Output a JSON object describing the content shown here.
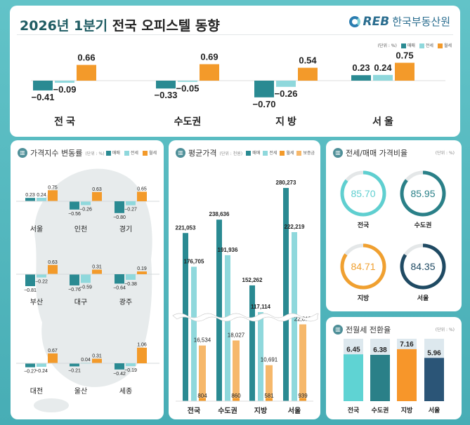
{
  "header": {
    "title_year": "2026년 1분기",
    "title_rest": "전국 오피스텔 동향",
    "logo_mark": "REB",
    "logo_name": "한국부동산원"
  },
  "colors": {
    "sale": "#2a8a92",
    "jeonse": "#8fd8dc",
    "monthly": "#f39a2a",
    "deposit": "#f6b86b",
    "track": "#e4e7e8"
  },
  "legend": {
    "unit": "(단위 : %)",
    "sale": "매매",
    "jeonse": "전세",
    "monthly": "월세",
    "deposit": "보증금"
  },
  "chart_data": [
    {
      "type": "bar",
      "id": "summary",
      "unit": "(단위 : %)",
      "categories": [
        "전 국",
        "수도권",
        "지 방",
        "서 울"
      ],
      "series": [
        {
          "name": "매매",
          "values": [
            -0.41,
            -0.33,
            -0.7,
            0.23
          ]
        },
        {
          "name": "전세",
          "values": [
            -0.09,
            -0.05,
            -0.26,
            0.24
          ]
        },
        {
          "name": "월세",
          "values": [
            0.66,
            0.69,
            0.54,
            0.75
          ]
        }
      ]
    },
    {
      "type": "bar",
      "id": "index",
      "title": "가격지수 변동률",
      "unit": "(단위 : %)",
      "categories": [
        "서울",
        "인천",
        "경기",
        "부산",
        "대구",
        "광주",
        "대전",
        "울산",
        "세종"
      ],
      "series": [
        {
          "name": "매매",
          "values": [
            0.23,
            -0.56,
            -0.8,
            -0.81,
            -0.76,
            -0.64,
            -0.27,
            -0.21,
            -0.42
          ]
        },
        {
          "name": "전세",
          "values": [
            0.24,
            -0.26,
            -0.27,
            -0.22,
            -0.59,
            -0.38,
            -0.24,
            0.04,
            -0.19
          ]
        },
        {
          "name": "월세",
          "values": [
            0.75,
            0.63,
            0.65,
            0.63,
            0.31,
            0.19,
            0.67,
            0.31,
            1.06
          ]
        }
      ]
    },
    {
      "type": "bar",
      "id": "price",
      "title": "평균가격",
      "unit": "(단위 : 천원)",
      "categories": [
        "전국",
        "수도권",
        "지방",
        "서울"
      ],
      "axis_break": true,
      "series": [
        {
          "name": "매매",
          "values": [
            221053,
            238636,
            152262,
            280273
          ]
        },
        {
          "name": "전세",
          "values": [
            176705,
            191936,
            117114,
            222219
          ]
        },
        {
          "name": "월세",
          "values": [
            804,
            860,
            581,
            939
          ]
        },
        {
          "name": "보증금",
          "values": [
            16534,
            18027,
            10691,
            22815
          ]
        }
      ]
    },
    {
      "type": "pie",
      "id": "ratio",
      "title": "전세/매매 가격비율",
      "unit": "(단위 : %)",
      "categories": [
        "전국",
        "수도권",
        "지방",
        "서울"
      ],
      "values": [
        85.7,
        85.95,
        84.71,
        84.35
      ],
      "colors": [
        "#5fcfd0",
        "#2a8088",
        "#f0a030",
        "#1f4a63"
      ]
    },
    {
      "type": "bar",
      "id": "conversion",
      "title": "전월세 전환율",
      "unit": "(단위 : %)",
      "categories": [
        "전국",
        "수도권",
        "지방",
        "서울"
      ],
      "values": [
        6.45,
        6.38,
        7.16,
        5.96
      ],
      "colors": [
        "#5fd3d3",
        "#2a8088",
        "#f7962a",
        "#2b5577"
      ]
    }
  ]
}
